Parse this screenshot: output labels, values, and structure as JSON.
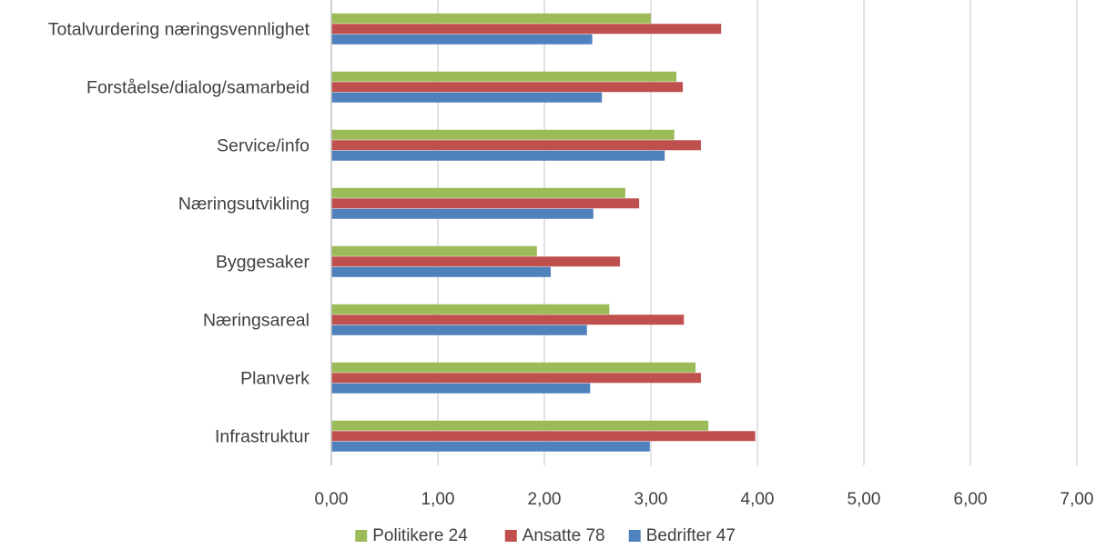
{
  "chart_data": {
    "type": "bar",
    "orientation": "horizontal",
    "title": "",
    "xlabel": "",
    "ylabel": "",
    "xlim": [
      0,
      7
    ],
    "x_ticks": [
      "0,00",
      "1,00",
      "2,00",
      "3,00",
      "4,00",
      "5,00",
      "6,00",
      "7,00"
    ],
    "grid": "vertical",
    "legend_position": "bottom",
    "categories": [
      "Totalvurdering næringsvennlighet",
      "Forståelse/dialog/samarbeid",
      "Service/info",
      "Næringsutvikling",
      "Byggesaker",
      "Næringsareal",
      "Planverk",
      "Infrastruktur"
    ],
    "series": [
      {
        "name": "Politikere 24",
        "color": "#9BBB59",
        "values": [
          3.0,
          3.24,
          3.22,
          2.76,
          1.93,
          2.61,
          3.42,
          3.54
        ]
      },
      {
        "name": "Ansatte 78",
        "color": "#C0504D",
        "values": [
          3.66,
          3.3,
          3.47,
          2.89,
          2.71,
          3.31,
          3.47,
          3.98
        ]
      },
      {
        "name": "Bedrifter 47",
        "color": "#4F81BD",
        "values": [
          2.45,
          2.54,
          3.13,
          2.46,
          2.06,
          2.4,
          2.43,
          2.99
        ]
      }
    ]
  }
}
